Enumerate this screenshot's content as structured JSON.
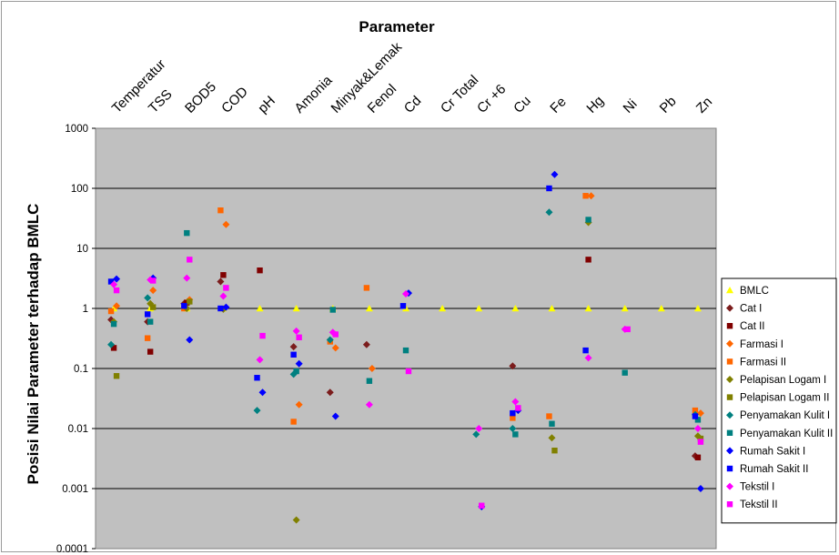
{
  "chart_data": {
    "type": "scatter",
    "title": "Parameter",
    "xlabel": "",
    "ylabel": "Posisi Nilai Parameter terhadap BMLC",
    "y_scale": "log",
    "ylim": [
      0.0001,
      1000
    ],
    "y_ticks": [
      "1000",
      "100",
      "10",
      "1",
      "0.1",
      "0.01",
      "0.001",
      "0.0001"
    ],
    "grid": "horizontal",
    "legend_position": "right",
    "background": "#c0c0c0",
    "categories": [
      "Temperatur",
      "TSS",
      "BOD5",
      "COD",
      "pH",
      "Amonia",
      "Minyak&Lemak",
      "Fenol",
      "Cd",
      "Cr Total",
      "Cr +6",
      "Cu",
      "Fe",
      "Hg",
      "Ni",
      "Pb",
      "Zn"
    ],
    "series": [
      {
        "name": "BMLC",
        "marker": "triangle",
        "color": "#ffff00",
        "values": [
          1,
          1,
          1,
          1,
          1,
          1,
          1,
          1,
          1,
          1,
          1,
          1,
          1,
          1,
          1,
          1,
          1
        ]
      },
      {
        "name": "Cat I",
        "marker": "diamond",
        "color": "#7b1c1c",
        "values": [
          0.65,
          0.6,
          1.2,
          2.8,
          null,
          0.23,
          0.04,
          0.25,
          null,
          null,
          null,
          0.11,
          null,
          null,
          null,
          null,
          0.0035
        ]
      },
      {
        "name": "Cat II",
        "marker": "square",
        "color": "#800000",
        "values": [
          0.22,
          0.19,
          1.25,
          3.6,
          4.3,
          null,
          null,
          null,
          null,
          null,
          null,
          null,
          null,
          6.5,
          null,
          null,
          0.0033
        ]
      },
      {
        "name": "Farmasi I",
        "marker": "diamond",
        "color": "#ff6600",
        "values": [
          1.1,
          2.0,
          1.4,
          25,
          null,
          0.025,
          0.22,
          0.1,
          null,
          null,
          null,
          null,
          null,
          75,
          null,
          null,
          0.018
        ]
      },
      {
        "name": "Farmasi II",
        "marker": "square",
        "color": "#ff6600",
        "values": [
          0.9,
          0.32,
          1.0,
          43,
          null,
          0.013,
          0.28,
          2.2,
          null,
          null,
          null,
          0.015,
          0.016,
          75,
          null,
          null,
          0.02
        ]
      },
      {
        "name": "Pelapisan Logam I",
        "marker": "diamond",
        "color": "#808000",
        "values": [
          0.6,
          1.2,
          1.0,
          0.97,
          null,
          0.0003,
          null,
          null,
          null,
          null,
          null,
          null,
          0.007,
          27,
          null,
          null,
          0.0075
        ]
      },
      {
        "name": "Pelapisan Logam II",
        "marker": "square",
        "color": "#808000",
        "values": [
          0.075,
          1.05,
          1.3,
          null,
          null,
          null,
          null,
          null,
          null,
          null,
          null,
          null,
          0.0043,
          null,
          null,
          null,
          0.0068
        ]
      },
      {
        "name": "Penyamakan Kulit I",
        "marker": "diamond",
        "color": "#008080",
        "values": [
          0.25,
          1.5,
          null,
          null,
          0.02,
          0.08,
          0.3,
          null,
          null,
          null,
          0.008,
          0.01,
          40,
          null,
          null,
          null,
          0.017
        ]
      },
      {
        "name": "Penyamakan Kulit II",
        "marker": "square",
        "color": "#008080",
        "values": [
          0.55,
          0.6,
          18,
          null,
          null,
          0.09,
          0.95,
          0.062,
          0.2,
          null,
          null,
          0.008,
          0.012,
          30,
          0.085,
          null,
          0.014
        ]
      },
      {
        "name": "Rumah Sakit I",
        "marker": "diamond",
        "color": "#0000ff",
        "values": [
          3.1,
          3.2,
          0.3,
          1.05,
          0.04,
          0.12,
          0.016,
          null,
          1.8,
          null,
          0.0005,
          0.02,
          170,
          null,
          null,
          null,
          0.001
        ]
      },
      {
        "name": "Rumah Sakit II",
        "marker": "square",
        "color": "#0000ff",
        "values": [
          2.8,
          0.8,
          1.1,
          1.0,
          0.07,
          0.17,
          null,
          null,
          1.1,
          null,
          null,
          0.018,
          100,
          0.2,
          null,
          null,
          0.016
        ]
      },
      {
        "name": "Tekstil I",
        "marker": "diamond",
        "color": "#ff00ff",
        "values": [
          2.5,
          3.0,
          3.2,
          1.6,
          0.14,
          0.42,
          0.4,
          0.025,
          1.75,
          null,
          0.01,
          0.028,
          null,
          0.15,
          0.45,
          null,
          0.01
        ]
      },
      {
        "name": "Tekstil II",
        "marker": "square",
        "color": "#ff00ff",
        "values": [
          2.0,
          2.9,
          6.5,
          2.2,
          0.35,
          0.33,
          0.37,
          null,
          0.09,
          null,
          0.00052,
          0.022,
          null,
          null,
          0.45,
          null,
          0.006
        ]
      }
    ]
  }
}
